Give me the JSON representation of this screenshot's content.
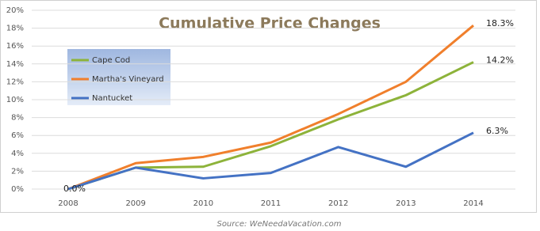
{
  "chart_data": {
    "type": "line",
    "title": "Cumulative Price Changes",
    "source": "Source: WeNeedaVacation.com",
    "categories": [
      "2008",
      "2009",
      "2010",
      "2011",
      "2012",
      "2013",
      "2014"
    ],
    "series": [
      {
        "name": "Cape Cod",
        "color": "#8db33a",
        "values": [
          0,
          2.4,
          2.5,
          4.8,
          7.8,
          10.5,
          14.2
        ],
        "value_labels": [
          null,
          null,
          null,
          null,
          null,
          null,
          "14.2%"
        ]
      },
      {
        "name": "Martha's Vineyard",
        "color": "#f07f2c",
        "values": [
          0,
          2.9,
          3.6,
          5.2,
          8.4,
          12.0,
          18.3
        ],
        "value_labels": [
          null,
          null,
          null,
          null,
          null,
          null,
          "18.3%"
        ]
      },
      {
        "name": "Nantucket",
        "color": "#4472c4",
        "values": [
          0,
          2.4,
          1.2,
          1.8,
          4.7,
          2.5,
          6.3
        ],
        "value_labels": [
          "0.0%",
          null,
          null,
          null,
          null,
          null,
          "6.3%"
        ]
      }
    ],
    "ylim": [
      0,
      20
    ],
    "yticks": [
      {
        "value": 0,
        "label": "0%"
      },
      {
        "value": 2,
        "label": "2%"
      },
      {
        "value": 4,
        "label": "4%"
      },
      {
        "value": 6,
        "label": "6%"
      },
      {
        "value": 8,
        "label": "8%"
      },
      {
        "value": 10,
        "label": "10%"
      },
      {
        "value": 12,
        "label": "12%"
      },
      {
        "value": 14,
        "label": "14%"
      },
      {
        "value": 16,
        "label": "16%"
      },
      {
        "value": 18,
        "label": "18%"
      },
      {
        "value": 20,
        "label": "20%"
      }
    ],
    "grid": true
  }
}
